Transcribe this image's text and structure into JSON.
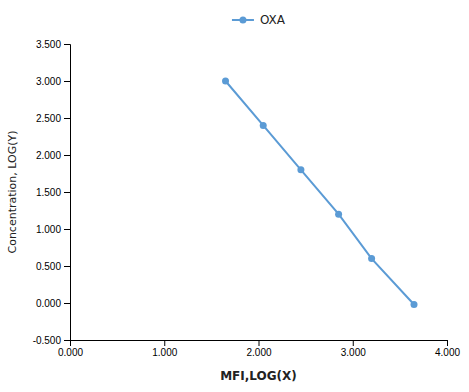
{
  "chart_data": {
    "type": "line",
    "x": [
      1.65,
      2.05,
      2.45,
      2.85,
      3.2,
      3.65
    ],
    "series": [
      {
        "name": "OXA",
        "color": "#5b9bd5",
        "marker": "circle",
        "values": [
          3.0,
          2.4,
          1.8,
          1.2,
          0.6,
          -0.02
        ]
      }
    ],
    "xlabel": "MFI,LOG(X)",
    "ylabel": "Concentration, LOG(Y)",
    "xlim": [
      0.0,
      4.0
    ],
    "ylim": [
      -0.5,
      3.5
    ],
    "xticks": [
      {
        "value": 0.0,
        "label": "0.000"
      },
      {
        "value": 1.0,
        "label": "1.000"
      },
      {
        "value": 2.0,
        "label": "2.000"
      },
      {
        "value": 3.0,
        "label": "3.000"
      },
      {
        "value": 4.0,
        "label": "4.000"
      }
    ],
    "yticks": [
      {
        "value": -0.5,
        "label": "-0.500"
      },
      {
        "value": 0.0,
        "label": "0.000"
      },
      {
        "value": 0.5,
        "label": "0.500"
      },
      {
        "value": 1.0,
        "label": "1.000"
      },
      {
        "value": 1.5,
        "label": "1.500"
      },
      {
        "value": 2.0,
        "label": "2.000"
      },
      {
        "value": 2.5,
        "label": "2.500"
      },
      {
        "value": 3.0,
        "label": "3.000"
      },
      {
        "value": 3.5,
        "label": "3.500"
      }
    ],
    "grid": false,
    "legend": "top"
  }
}
